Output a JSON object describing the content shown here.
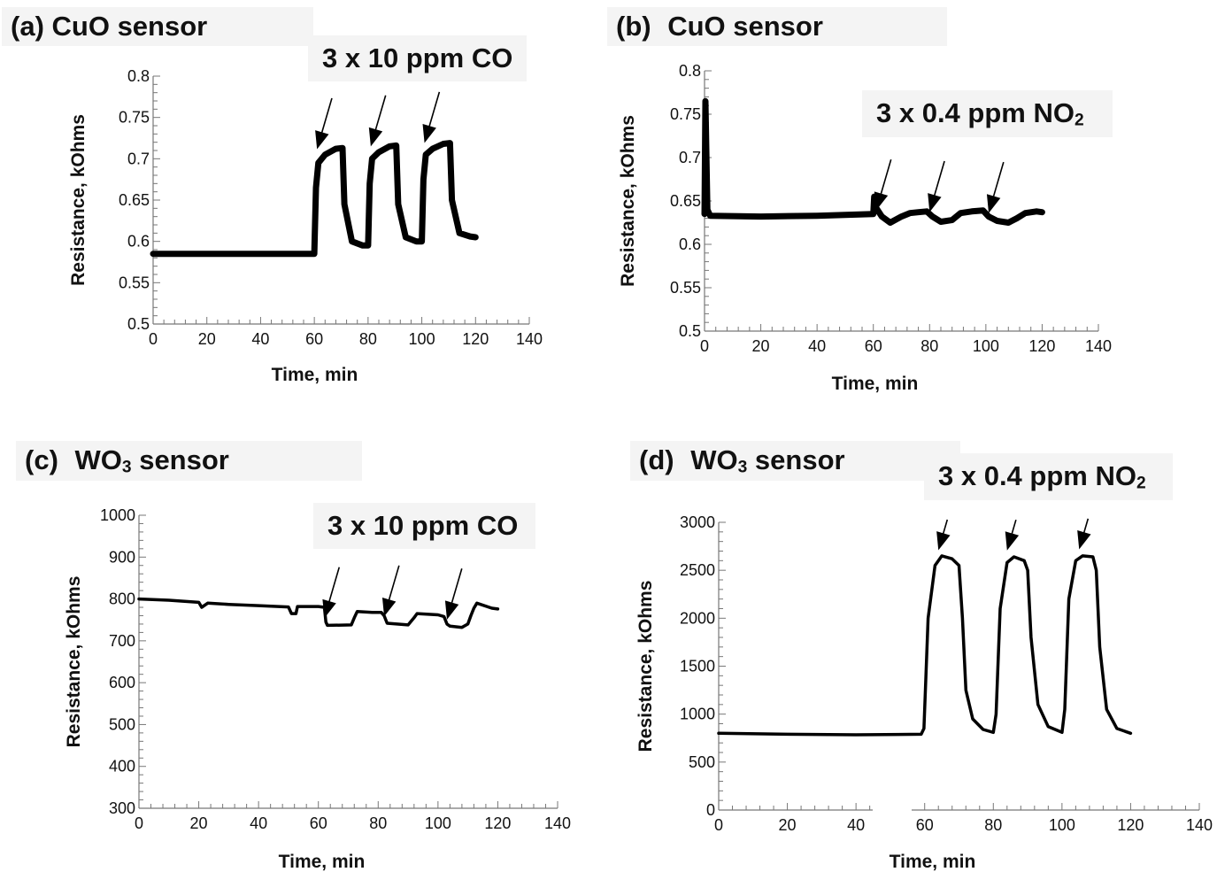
{
  "chart_data": [
    {
      "type": "line",
      "panel_label": "(a)",
      "title": "CuO sensor",
      "annotation": "3 x 10 ppm CO",
      "xlabel": "Time, min",
      "ylabel": "Resistance, kOhms",
      "xlim": [
        0,
        140
      ],
      "ylim": [
        0.5,
        0.8
      ],
      "xticks": [
        "0",
        "20",
        "40",
        "60",
        "80",
        "100",
        "120",
        "140"
      ],
      "yticks": [
        "0.5",
        "0.55",
        "0.6",
        "0.65",
        "0.7",
        "0.75",
        "0.8"
      ],
      "arrows_at_x": [
        61,
        81,
        101
      ],
      "series": [
        {
          "x": [
            0,
            60,
            60.6,
            61.5,
            64,
            68,
            70.5,
            71.2,
            74,
            78,
            80,
            80.6,
            81.5,
            84,
            88,
            90.5,
            91.2,
            94,
            98,
            100,
            100.6,
            101.5,
            104,
            108,
            110.5,
            111.2,
            114,
            118,
            120
          ],
          "y": [
            0.585,
            0.585,
            0.665,
            0.695,
            0.705,
            0.712,
            0.713,
            0.645,
            0.6,
            0.595,
            0.595,
            0.67,
            0.7,
            0.708,
            0.715,
            0.716,
            0.645,
            0.605,
            0.6,
            0.6,
            0.675,
            0.705,
            0.712,
            0.718,
            0.719,
            0.65,
            0.61,
            0.606,
            0.605
          ]
        }
      ]
    },
    {
      "type": "line",
      "panel_label": "(b)",
      "title": "CuO sensor",
      "annotation": "3 x 0.4 ppm NO",
      "annotation_sub": "2",
      "xlabel": "Time, min",
      "ylabel": "Resistance, kOhms",
      "xlim": [
        0,
        140
      ],
      "ylim": [
        0.5,
        0.8
      ],
      "xticks": [
        "0",
        "20",
        "40",
        "60",
        "80",
        "100",
        "120",
        "140"
      ],
      "yticks": [
        "0.5",
        "0.55",
        "0.6",
        "0.65",
        "0.7",
        "0.75",
        "0.8"
      ],
      "arrows_at_x": [
        61,
        80,
        101
      ],
      "series": [
        {
          "x": [
            0,
            0.3,
            1,
            2,
            20,
            40,
            60,
            60.3,
            61,
            63,
            66,
            70,
            73,
            76,
            79,
            81,
            84,
            88,
            91,
            95,
            99,
            101,
            104,
            108,
            111,
            114,
            118,
            120
          ],
          "y": [
            0.635,
            0.765,
            0.64,
            0.633,
            0.632,
            0.633,
            0.635,
            0.655,
            0.642,
            0.632,
            0.625,
            0.632,
            0.636,
            0.637,
            0.638,
            0.632,
            0.626,
            0.628,
            0.636,
            0.638,
            0.639,
            0.632,
            0.627,
            0.625,
            0.63,
            0.636,
            0.638,
            0.637
          ]
        }
      ]
    },
    {
      "type": "line",
      "panel_label": "(c)",
      "title": "WO",
      "title_sub": "3",
      "title_suffix": "sensor",
      "annotation": "3 x 10 ppm CO",
      "xlabel": "Time, min",
      "ylabel": "Resistance, kOhms",
      "xlim": [
        0,
        140
      ],
      "ylim": [
        300,
        1000
      ],
      "xticks": [
        "0",
        "20",
        "40",
        "60",
        "80",
        "100",
        "120",
        "140"
      ],
      "yticks": [
        "300",
        "400",
        "500",
        "600",
        "700",
        "800",
        "900",
        "1000"
      ],
      "arrows_at_x": [
        62,
        82,
        103
      ],
      "series": [
        {
          "x": [
            0,
            10,
            20,
            21,
            23,
            30,
            40,
            50,
            51,
            52.5,
            53,
            60,
            62,
            62.5,
            63,
            71,
            72,
            73,
            78,
            81,
            82,
            83,
            90,
            92,
            93,
            100,
            102,
            103,
            104,
            108,
            110,
            111,
            112,
            113,
            118,
            120
          ],
          "y": [
            800,
            797,
            792,
            780,
            790,
            787,
            784,
            781,
            765,
            765,
            782,
            782,
            780,
            745,
            737,
            738,
            755,
            770,
            768,
            768,
            760,
            742,
            738,
            755,
            765,
            762,
            758,
            740,
            735,
            732,
            740,
            760,
            778,
            790,
            778,
            776
          ]
        }
      ]
    },
    {
      "type": "line",
      "panel_label": "(d)",
      "title": "WO",
      "title_sub": "3",
      "title_suffix": "sensor",
      "annotation": "3 x 0.4 ppm NO",
      "annotation_sub": "2",
      "xlabel": "Time, min",
      "ylabel": "Resistance, kOhms",
      "xlim": [
        0,
        140
      ],
      "ylim": [
        0,
        3000
      ],
      "xticks": [
        "0",
        "20",
        "40",
        "60",
        "80",
        "100",
        "120",
        "140"
      ],
      "yticks": [
        "0",
        "500",
        "1000",
        "1500",
        "2000",
        "2500",
        "3000"
      ],
      "arrows_at_x": [
        64,
        84,
        105
      ],
      "series": [
        {
          "x": [
            0,
            20,
            40,
            59,
            59.8,
            61,
            63,
            65,
            68,
            70,
            71,
            72,
            74,
            77,
            80,
            80.8,
            82,
            84,
            86,
            89,
            90,
            91,
            93,
            96,
            100,
            100.8,
            102,
            104,
            106,
            109,
            110,
            111,
            113,
            116,
            120
          ],
          "y": [
            800,
            790,
            785,
            790,
            850,
            2000,
            2550,
            2650,
            2620,
            2550,
            2000,
            1250,
            950,
            840,
            810,
            1000,
            2100,
            2580,
            2640,
            2600,
            2500,
            1800,
            1100,
            870,
            810,
            1050,
            2200,
            2600,
            2650,
            2640,
            2500,
            1700,
            1050,
            850,
            800
          ]
        }
      ]
    }
  ]
}
